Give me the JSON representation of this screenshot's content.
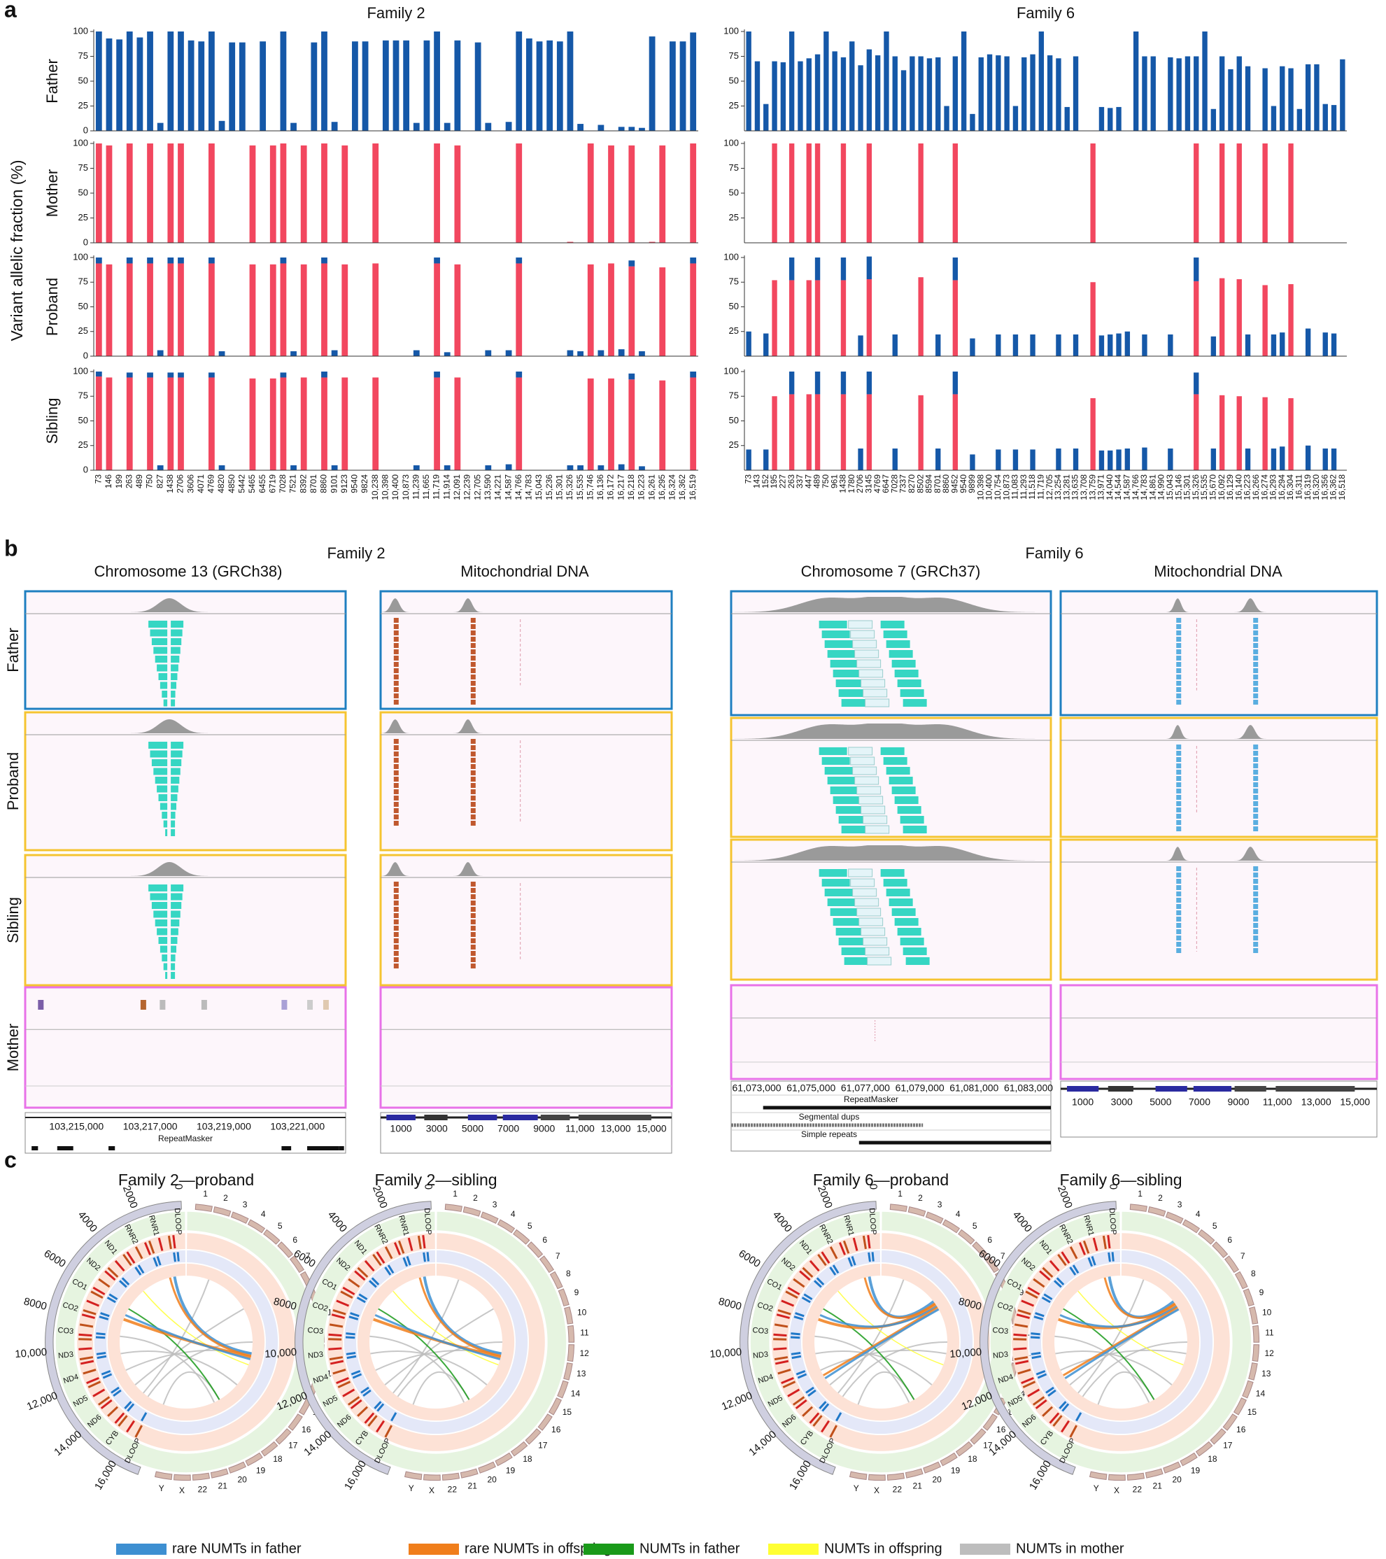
{
  "panel_a": {
    "label": "a",
    "ylabel": "Variant allelic fraction (%)"
  },
  "chart_data": [
    {
      "type": "bar",
      "title": "Family 2",
      "ylabel": "Father",
      "series": [
        {
          "color": "#1558a8",
          "values": [
            100,
            93,
            92,
            100,
            94,
            100,
            8,
            100,
            100,
            91,
            90,
            100,
            10,
            89,
            89,
            0,
            90,
            0,
            100,
            8,
            0,
            89,
            100,
            9,
            0,
            90,
            90,
            0,
            91,
            91,
            91,
            8,
            91,
            100,
            8,
            91,
            0,
            89,
            8,
            0,
            9,
            100,
            93,
            90,
            91,
            90,
            100,
            7,
            0,
            6,
            0,
            4,
            4,
            3,
            95,
            0,
            90,
            90,
            99
          ]
        }
      ],
      "ylim": [
        0,
        100
      ],
      "yticks": [
        0,
        25,
        50,
        75,
        100
      ]
    },
    {
      "type": "bar",
      "ylabel": "Mother",
      "series": [
        {
          "color": "#f2475f",
          "values": [
            100,
            98,
            0,
            100,
            0,
            100,
            0,
            100,
            100,
            0,
            0,
            100,
            0,
            0,
            0,
            98,
            0,
            98,
            100,
            0,
            98,
            0,
            100,
            0,
            98,
            0,
            0,
            100,
            0,
            0,
            0,
            0,
            0,
            100,
            0,
            98,
            0,
            0,
            0,
            0,
            0,
            100,
            0,
            0,
            0,
            0,
            1,
            0,
            100,
            0,
            98,
            0,
            98,
            0,
            1,
            98,
            0,
            0,
            100
          ]
        }
      ],
      "ylim": [
        0,
        100
      ],
      "yticks": [
        0,
        25,
        50,
        75,
        100
      ]
    },
    {
      "type": "bar",
      "ylabel": "Proband",
      "stacked": true,
      "series": [
        {
          "color": "#f2475f",
          "values": [
            94,
            93,
            0,
            94,
            0,
            94,
            0,
            94,
            94,
            0,
            0,
            94,
            0,
            0,
            0,
            93,
            0,
            93,
            94,
            0,
            93,
            0,
            94,
            0,
            93,
            0,
            0,
            94,
            0,
            0,
            0,
            0,
            0,
            94,
            0,
            93,
            0,
            0,
            0,
            0,
            0,
            94,
            0,
            0,
            0,
            0,
            0,
            0,
            93,
            0,
            94,
            0,
            91,
            0,
            0,
            90,
            0,
            0,
            94
          ]
        },
        {
          "color": "#1558a8",
          "values": [
            6,
            0,
            0,
            6,
            0,
            6,
            6,
            6,
            6,
            0,
            0,
            6,
            5,
            0,
            0,
            0,
            0,
            0,
            6,
            5,
            0,
            0,
            6,
            6,
            0,
            0,
            0,
            0,
            0,
            0,
            0,
            6,
            0,
            6,
            4,
            0,
            0,
            0,
            6,
            0,
            6,
            6,
            0,
            0,
            0,
            0,
            6,
            5,
            0,
            6,
            0,
            7,
            6,
            5,
            0,
            0,
            0,
            0,
            6
          ]
        }
      ],
      "ylim": [
        0,
        100
      ],
      "yticks": [
        0,
        25,
        50,
        75,
        100
      ]
    },
    {
      "type": "bar",
      "ylabel": "Sibling",
      "stacked": true,
      "categories": [
        "73",
        "146",
        "199",
        "263",
        "489",
        "750",
        "827",
        "1438",
        "2706",
        "3606",
        "4071",
        "4769",
        "4820",
        "4850",
        "5442",
        "5465",
        "6455",
        "6719",
        "7028",
        "7521",
        "8392",
        "8701",
        "8860",
        "9101",
        "9123",
        "9540",
        "9824",
        "10,238",
        "10,398",
        "10,400",
        "10,873",
        "11,239",
        "11,665",
        "11,719",
        "11,914",
        "12,091",
        "12,239",
        "12,705",
        "13,590",
        "14,221",
        "14,587",
        "14,766",
        "14,783",
        "15,043",
        "15,236",
        "15,301",
        "15,326",
        "15,535",
        "15,746",
        "16,136",
        "16,172",
        "16,217",
        "16,218",
        "16,223",
        "16,261",
        "16,295",
        "16,324",
        "16,362",
        "16,519"
      ],
      "series": [
        {
          "color": "#f2475f",
          "values": [
            95,
            94,
            0,
            94,
            0,
            94,
            0,
            94,
            94,
            0,
            0,
            94,
            0,
            0,
            0,
            93,
            0,
            93,
            94,
            0,
            94,
            0,
            94,
            0,
            94,
            0,
            0,
            94,
            0,
            0,
            0,
            0,
            0,
            94,
            0,
            94,
            0,
            0,
            0,
            0,
            0,
            94,
            0,
            0,
            0,
            0,
            0,
            0,
            93,
            0,
            93,
            0,
            92,
            0,
            0,
            91,
            0,
            0,
            94
          ]
        },
        {
          "color": "#1558a8",
          "values": [
            5,
            0,
            0,
            5,
            0,
            5,
            5,
            5,
            5,
            0,
            0,
            5,
            5,
            0,
            0,
            0,
            0,
            0,
            5,
            5,
            0,
            0,
            6,
            5,
            0,
            0,
            0,
            0,
            0,
            0,
            0,
            5,
            0,
            6,
            5,
            0,
            0,
            0,
            5,
            0,
            6,
            6,
            0,
            0,
            0,
            0,
            5,
            5,
            0,
            5,
            0,
            6,
            6,
            4,
            0,
            0,
            0,
            0,
            6
          ]
        }
      ],
      "ylim": [
        0,
        100
      ],
      "yticks": [
        0,
        25,
        50,
        75,
        100
      ]
    },
    {
      "type": "bar",
      "title": "Family 6",
      "series": [
        {
          "color": "#1558a8",
          "values": [
            100,
            70,
            27,
            70,
            69,
            100,
            70,
            73,
            77,
            100,
            80,
            74,
            90,
            66,
            82,
            76,
            100,
            75,
            61,
            75,
            75,
            73,
            74,
            25,
            75,
            100,
            17,
            74,
            77,
            76,
            75,
            25,
            74,
            77,
            100,
            76,
            73,
            24,
            75,
            0,
            0,
            24,
            23,
            24,
            0,
            100,
            75,
            75,
            0,
            74,
            73,
            75,
            75,
            100,
            22,
            75,
            62,
            75,
            65,
            0,
            63,
            25,
            65,
            63,
            22,
            67,
            67,
            27,
            26,
            72
          ]
        }
      ],
      "ylim": [
        0,
        100
      ],
      "yticks": [
        25,
        50,
        75,
        100
      ]
    },
    {
      "type": "bar",
      "series": [
        {
          "color": "#f2475f",
          "values": [
            0,
            0,
            0,
            100,
            0,
            100,
            0,
            100,
            100,
            0,
            0,
            100,
            0,
            0,
            100,
            0,
            0,
            0,
            0,
            0,
            100,
            0,
            0,
            0,
            100,
            0,
            0,
            0,
            0,
            0,
            0,
            0,
            0,
            0,
            0,
            0,
            0,
            0,
            0,
            0,
            100,
            0,
            0,
            0,
            0,
            0,
            0,
            0,
            0,
            0,
            0,
            0,
            100,
            0,
            0,
            100,
            0,
            100,
            0,
            0,
            100,
            0,
            0,
            100,
            0,
            0,
            0,
            0,
            0,
            0
          ]
        }
      ],
      "ylim": [
        0,
        100
      ],
      "yticks": [
        25,
        50,
        75,
        100
      ]
    },
    {
      "type": "bar",
      "stacked": true,
      "series": [
        {
          "color": "#f2475f",
          "values": [
            0,
            0,
            0,
            77,
            0,
            77,
            0,
            77,
            77,
            0,
            0,
            77,
            0,
            0,
            78,
            0,
            0,
            0,
            0,
            0,
            80,
            0,
            0,
            0,
            77,
            0,
            0,
            0,
            0,
            0,
            0,
            0,
            0,
            0,
            0,
            0,
            0,
            0,
            0,
            0,
            75,
            0,
            0,
            0,
            0,
            0,
            0,
            0,
            0,
            0,
            0,
            0,
            76,
            0,
            0,
            79,
            0,
            78,
            0,
            0,
            72,
            0,
            0,
            73,
            0,
            0,
            0,
            0,
            0,
            0
          ]
        },
        {
          "color": "#1558a8",
          "values": [
            25,
            0,
            23,
            0,
            0,
            23,
            0,
            0,
            23,
            0,
            0,
            23,
            0,
            21,
            23,
            0,
            0,
            22,
            0,
            0,
            0,
            0,
            22,
            0,
            23,
            0,
            18,
            0,
            0,
            22,
            0,
            22,
            0,
            22,
            0,
            0,
            22,
            0,
            22,
            0,
            0,
            21,
            22,
            23,
            25,
            0,
            22,
            0,
            0,
            22,
            0,
            0,
            24,
            0,
            20,
            0,
            0,
            0,
            22,
            0,
            0,
            22,
            24,
            0,
            0,
            28,
            0,
            24,
            23,
            0
          ]
        }
      ],
      "ylim": [
        0,
        100
      ],
      "yticks": [
        25,
        50,
        75,
        100
      ]
    },
    {
      "type": "bar",
      "stacked": true,
      "categories": [
        "73",
        "143",
        "152",
        "195",
        "227",
        "263",
        "337",
        "447",
        "489",
        "750",
        "961",
        "1438",
        "1780",
        "2706",
        "3145",
        "4769",
        "6647",
        "7028",
        "7337",
        "8270",
        "8502",
        "8594",
        "8701",
        "8860",
        "9452",
        "9540",
        "9899",
        "10,398",
        "10,400",
        "10,754",
        "10,873",
        "11,083",
        "11,293",
        "11,518",
        "11,719",
        "12,705",
        "13,254",
        "13,281",
        "13,635",
        "13,708",
        "13,759",
        "13,971",
        "14,040",
        "14,544",
        "14,587",
        "14,766",
        "14,783",
        "14,861",
        "14,990",
        "15,043",
        "15,146",
        "15,301",
        "15,326",
        "15,535",
        "15,670",
        "16,092",
        "16,129",
        "16,140",
        "16,223",
        "16,266",
        "16,274",
        "16,293",
        "16,294",
        "16,304",
        "16,311",
        "16,319",
        "16,320",
        "16,356",
        "16,362",
        "16,518"
      ],
      "series": [
        {
          "color": "#f2475f",
          "values": [
            0,
            0,
            0,
            75,
            0,
            77,
            0,
            77,
            77,
            0,
            0,
            77,
            0,
            0,
            77,
            0,
            0,
            0,
            0,
            0,
            76,
            0,
            0,
            0,
            77,
            0,
            0,
            0,
            0,
            0,
            0,
            0,
            0,
            0,
            0,
            0,
            0,
            0,
            0,
            0,
            73,
            0,
            0,
            0,
            0,
            0,
            0,
            0,
            0,
            0,
            0,
            0,
            77,
            0,
            0,
            76,
            0,
            75,
            0,
            0,
            74,
            0,
            0,
            73,
            0,
            0,
            0,
            0,
            0,
            0
          ]
        },
        {
          "color": "#1558a8",
          "values": [
            21,
            0,
            21,
            0,
            0,
            23,
            0,
            0,
            23,
            0,
            0,
            23,
            0,
            22,
            23,
            0,
            0,
            22,
            0,
            0,
            0,
            0,
            22,
            0,
            23,
            0,
            16,
            0,
            0,
            21,
            0,
            21,
            0,
            21,
            0,
            0,
            22,
            0,
            22,
            0,
            0,
            20,
            20,
            21,
            22,
            0,
            23,
            0,
            0,
            22,
            0,
            0,
            22,
            0,
            22,
            0,
            0,
            0,
            22,
            0,
            0,
            22,
            24,
            0,
            0,
            25,
            0,
            22,
            22,
            0
          ]
        }
      ],
      "ylim": [
        0,
        100
      ],
      "yticks": [
        25,
        50,
        75,
        100
      ]
    }
  ],
  "panel_b": {
    "label": "b",
    "groups": [
      {
        "title": "Family 2",
        "columns": [
          "Chromosome 13 (GRCh38)",
          "Mitochondrial DNA"
        ]
      },
      {
        "title": "Family 6",
        "columns": [
          "Chromosome 7 (GRCh37)",
          "Mitochondrial DNA"
        ]
      }
    ],
    "rows": [
      "Father",
      "Proband",
      "Sibling",
      "Mother"
    ],
    "chr13_ticks": [
      "103,215,000",
      "103,217,000",
      "103,219,000",
      "103,221,000"
    ],
    "chr13_track": "RepeatMasker",
    "mt_ticks": [
      "1000",
      "3000",
      "5000",
      "7000",
      "9000",
      "11,000",
      "13,000",
      "15,000"
    ],
    "chr7_ticks": [
      "61,073,000",
      "61,075,000",
      "61,077,000",
      "61,079,000",
      "61,081,000",
      "61,083,000"
    ],
    "chr7_tracks": [
      "RepeatMasker",
      "Segmental dups",
      "Simple repeats"
    ]
  },
  "panel_c": {
    "label": "c",
    "titles": [
      "Family 2—proband",
      "Family 2—sibling",
      "Family 6—proband",
      "Family 6—sibling"
    ],
    "mt_ticks": [
      "0",
      "2000",
      "4000",
      "6000",
      "8000",
      "10,000",
      "12,000",
      "14,000",
      "16,000"
    ],
    "genes": [
      "DLOOP",
      "RNR1",
      "RNR2",
      "ND1",
      "ND2",
      "CO1",
      "CO2",
      "CO3",
      "ND3",
      "ND4",
      "ND5",
      "ND6",
      "CYB",
      "DLOOP"
    ],
    "chromosomes": [
      "1",
      "2",
      "3",
      "4",
      "5",
      "6",
      "7",
      "8",
      "9",
      "10",
      "11",
      "12",
      "13",
      "14",
      "15",
      "16",
      "17",
      "18",
      "19",
      "20",
      "21",
      "22",
      "X",
      "Y"
    ],
    "legend": [
      {
        "name": "rare NUMTs in father",
        "color": "#3d8fd1"
      },
      {
        "name": "rare NUMTs in offspring",
        "color": "#f07e1b"
      },
      {
        "name": "NUMTs in father",
        "color": "#1a9a1a"
      },
      {
        "name": "NUMTs in offspring",
        "color": "#ffff33"
      },
      {
        "name": "NUMTs in mother",
        "color": "#bdbdbd"
      }
    ]
  }
}
